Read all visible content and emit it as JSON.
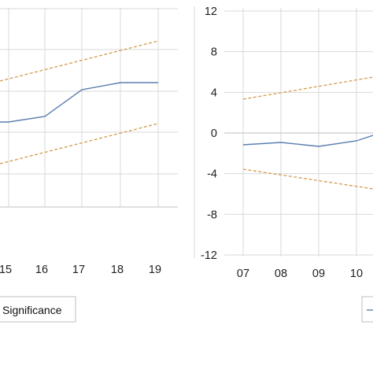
{
  "chart_data": [
    {
      "type": "line",
      "x_ticks": [
        "15",
        "16",
        "17",
        "18",
        "19"
      ],
      "ylim": [
        -10,
        12
      ],
      "grid": true,
      "series": [
        {
          "role": "estimate",
          "color": "#5b7fb0",
          "dashed": false,
          "values": [
            1.2,
            1.8,
            5.0,
            6.0,
            6.0
          ]
        },
        {
          "role": "upper-significance",
          "color": "#d49a4e",
          "dashed": true,
          "values": [
            7.0,
            8.0,
            9.0,
            10.0,
            11.0
          ]
        },
        {
          "role": "lower-significance",
          "color": "#d49a4e",
          "dashed": true,
          "values": [
            -2.2,
            -1.2,
            -0.2,
            0.8,
            1.8
          ]
        }
      ],
      "legend": {
        "label": "Significance",
        "placement": "bottom-left"
      }
    },
    {
      "type": "line",
      "x_ticks": [
        "07",
        "08",
        "09",
        "10"
      ],
      "y_ticks": [
        "12",
        "8",
        "4",
        "0",
        "-4",
        "-8",
        "-12"
      ],
      "ylim": [
        -12,
        12
      ],
      "grid": true,
      "series": [
        {
          "role": "estimate",
          "color": "#5b7fb0",
          "dashed": false,
          "values": [
            -1.2,
            -0.9,
            -1.3,
            -0.4
          ]
        },
        {
          "role": "upper-significance",
          "color": "#d49a4e",
          "dashed": true,
          "values": [
            3.3,
            4.0,
            4.7,
            5.4
          ]
        },
        {
          "role": "lower-significance",
          "color": "#d49a4e",
          "dashed": true,
          "values": [
            -3.4,
            -4.1,
            -4.8,
            -5.5
          ]
        }
      ],
      "legend": {
        "placement": "bottom-right"
      }
    }
  ]
}
